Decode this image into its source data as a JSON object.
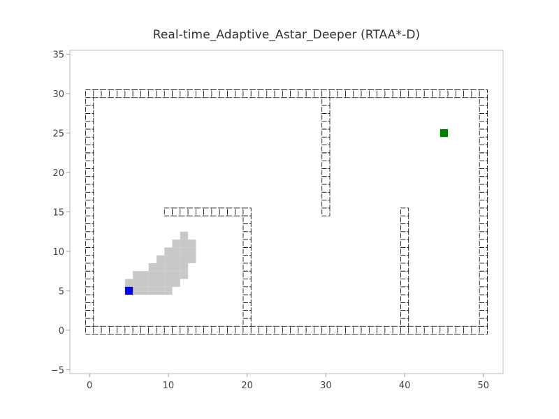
{
  "chart_data": {
    "type": "grid-path",
    "title": "Real-time_Adaptive_Astar_Deeper (RTAA*-D)",
    "xlabel": "",
    "ylabel": "",
    "xlim": [
      -2.5,
      52.5
    ],
    "ylim": [
      -5.5,
      35.5
    ],
    "xticks": [
      0,
      10,
      20,
      30,
      40,
      50
    ],
    "yticks": [
      -5,
      0,
      5,
      10,
      15,
      20,
      25,
      30,
      35
    ],
    "ytick_labels": [
      "−5",
      "0",
      "5",
      "10",
      "15",
      "20",
      "25",
      "30",
      "35"
    ],
    "grid": false,
    "colors": {
      "start": "#0000ff",
      "goal": "#008000",
      "visited": "#c8c8c8",
      "obstacle_edge": "#000000",
      "frame": "#bbbbbb"
    },
    "start": [
      5,
      5
    ],
    "goal": [
      45,
      25
    ],
    "obstacle_segments": [
      {
        "from": [
          0,
          0
        ],
        "to": [
          50,
          0
        ]
      },
      {
        "from": [
          0,
          30
        ],
        "to": [
          50,
          30
        ]
      },
      {
        "from": [
          0,
          0
        ],
        "to": [
          0,
          30
        ]
      },
      {
        "from": [
          50,
          0
        ],
        "to": [
          50,
          30
        ]
      },
      {
        "from": [
          10,
          15
        ],
        "to": [
          20,
          15
        ]
      },
      {
        "from": [
          20,
          0
        ],
        "to": [
          20,
          15
        ]
      },
      {
        "from": [
          30,
          15
        ],
        "to": [
          30,
          30
        ]
      },
      {
        "from": [
          40,
          0
        ],
        "to": [
          40,
          15
        ]
      }
    ],
    "visited_cells": [
      [
        5,
        6
      ],
      [
        5,
        5
      ],
      [
        6,
        7
      ],
      [
        6,
        6
      ],
      [
        6,
        5
      ],
      [
        7,
        7
      ],
      [
        7,
        6
      ],
      [
        7,
        5
      ],
      [
        8,
        8
      ],
      [
        8,
        7
      ],
      [
        8,
        6
      ],
      [
        8,
        5
      ],
      [
        9,
        9
      ],
      [
        9,
        8
      ],
      [
        9,
        7
      ],
      [
        9,
        6
      ],
      [
        9,
        5
      ],
      [
        10,
        10
      ],
      [
        10,
        9
      ],
      [
        10,
        8
      ],
      [
        10,
        7
      ],
      [
        10,
        6
      ],
      [
        10,
        5
      ],
      [
        11,
        11
      ],
      [
        11,
        10
      ],
      [
        11,
        9
      ],
      [
        11,
        8
      ],
      [
        11,
        7
      ],
      [
        11,
        6
      ],
      [
        12,
        12
      ],
      [
        12,
        11
      ],
      [
        12,
        10
      ],
      [
        12,
        9
      ],
      [
        12,
        8
      ],
      [
        12,
        7
      ],
      [
        13,
        11
      ],
      [
        13,
        10
      ],
      [
        13,
        9
      ]
    ]
  }
}
